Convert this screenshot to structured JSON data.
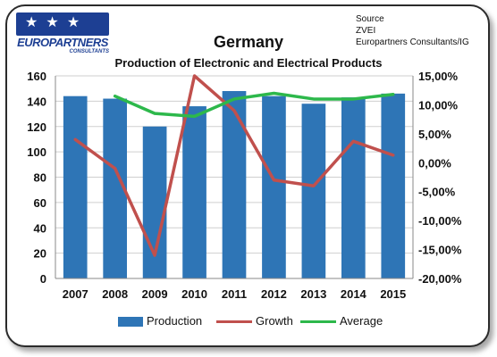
{
  "logo": {
    "stars": "★ ★ ★",
    "name": "EUROPARTNERS",
    "sub": "CONSULTANTS"
  },
  "source": {
    "line1": "Source",
    "line2": "ZVEI",
    "line3": "Europartners Consultants/IG"
  },
  "colors": {
    "production": "#2e75b6",
    "growth": "#c0504d",
    "average": "#2db84b"
  },
  "chart_data": {
    "type": "bar",
    "title": "Germany",
    "subtitle": "Production of Electronic and Electrical Products",
    "categories": [
      "2007",
      "2008",
      "2009",
      "2010",
      "2011",
      "2012",
      "2013",
      "2014",
      "2015"
    ],
    "series": [
      {
        "name": "Production",
        "type": "bar",
        "axis": "left",
        "values": [
          144,
          142,
          120,
          136,
          148,
          144,
          138,
          143,
          146
        ]
      },
      {
        "name": "Growth",
        "type": "line",
        "axis": "right",
        "values": [
          4.0,
          -1.0,
          -16.0,
          15.0,
          9.0,
          -3.0,
          -4.0,
          3.7,
          1.3
        ]
      },
      {
        "name": "Average",
        "type": "line",
        "axis": "right",
        "values": [
          null,
          11.5,
          8.5,
          8.0,
          11.0,
          12.0,
          11.0,
          11.0,
          11.8
        ]
      }
    ],
    "y_left": {
      "min": 0,
      "max": 160,
      "ticks": [
        "0",
        "20",
        "40",
        "60",
        "80",
        "100",
        "120",
        "140",
        "160"
      ]
    },
    "y_right": {
      "min": -20,
      "max": 15,
      "ticks": [
        "-20,00%",
        "-15,00%",
        "-10,00%",
        "-5,00%",
        "0,00%",
        "5,00%",
        "10,00%",
        "15,00%"
      ]
    },
    "grid": true,
    "legend_position": "bottom"
  }
}
